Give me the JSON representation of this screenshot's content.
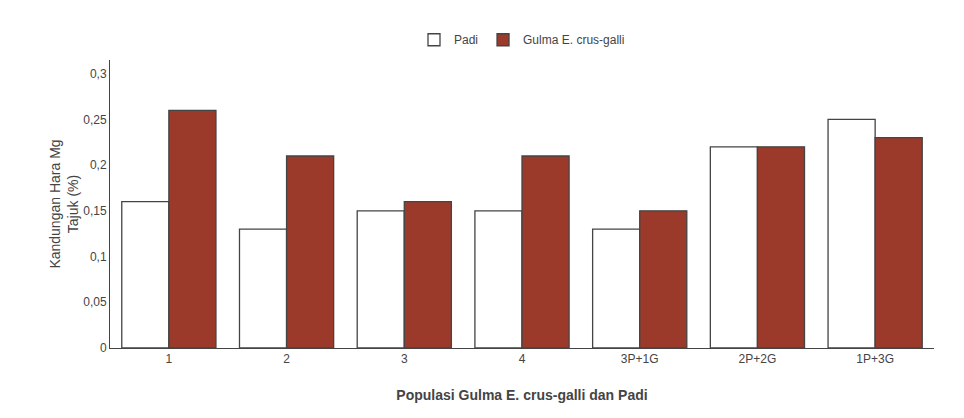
{
  "chart_data": {
    "type": "bar",
    "categories": [
      "1",
      "2",
      "3",
      "4",
      "3P+1G",
      "2P+2G",
      "1P+3G"
    ],
    "series": [
      {
        "name": "Padi",
        "color": "#ffffff",
        "values": [
          0.16,
          0.13,
          0.15,
          0.15,
          0.13,
          0.22,
          0.25
        ]
      },
      {
        "name": "Gulma E. crus-galli",
        "color": "#9B3A2A",
        "values": [
          0.26,
          0.21,
          0.16,
          0.21,
          0.15,
          0.22,
          0.23
        ]
      }
    ],
    "xlabel": "Populasi Gulma E. crus-galli dan Padi",
    "ylabel": "Kandungan Hara Mg\nTajuk (%)",
    "ylim": [
      0,
      0.315
    ],
    "yticks": [
      0,
      {
        "value": 0.05,
        "label": "0,05"
      },
      {
        "value": 0.1,
        "label": "0,1"
      },
      {
        "value": 0.15,
        "label": "0,15"
      },
      {
        "value": 0.2,
        "label": "0,2"
      },
      {
        "value": 0.25,
        "label": "0,25"
      },
      {
        "value": 0.3,
        "label": "0,3"
      }
    ],
    "grid": false,
    "legend": "upper center"
  }
}
